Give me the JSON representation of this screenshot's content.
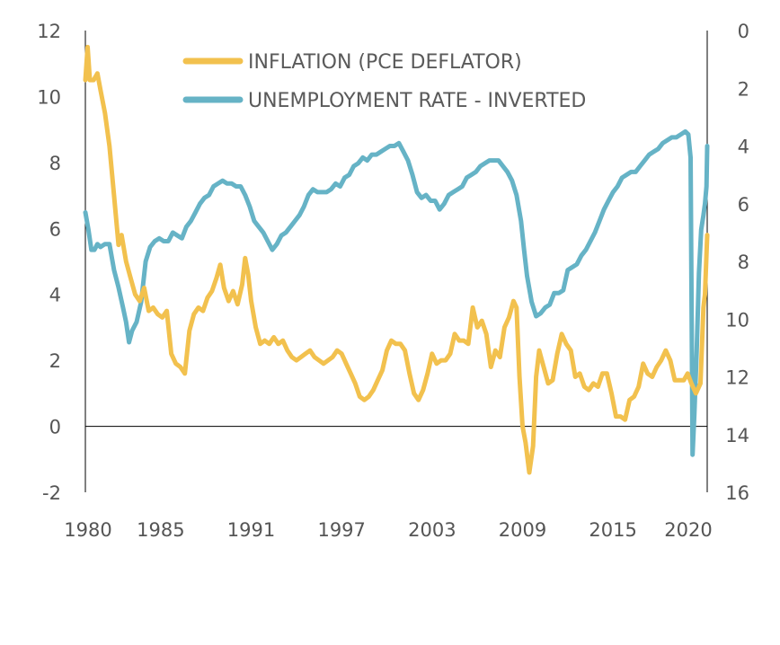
{
  "chart_data": {
    "type": "line",
    "title": "",
    "legend_position": "top-center",
    "grid": false,
    "x_ticks": [
      "1980",
      "1985",
      "1991",
      "1997",
      "2003",
      "2009",
      "2015",
      "2020"
    ],
    "x_range": [
      1980,
      2021.25
    ],
    "y_left_ticks": [
      "12",
      "10",
      "8",
      "6",
      "4",
      "2",
      "0",
      "-2"
    ],
    "y_left_range": [
      -2,
      12
    ],
    "y_right_ticks": [
      "0",
      "2",
      "4",
      "6",
      "8",
      "10",
      "12",
      "14",
      "16"
    ],
    "y_right_range": [
      0,
      16
    ],
    "y_right_inverted": true,
    "series": [
      {
        "name": "INFLATION (PCE DEFLATOR)",
        "axis": "left",
        "color": "#f2c14e",
        "points": [
          [
            1980.0,
            10.5
          ],
          [
            1980.15,
            11.5
          ],
          [
            1980.3,
            10.5
          ],
          [
            1980.55,
            10.5
          ],
          [
            1980.8,
            10.7
          ],
          [
            1981.0,
            10.2
          ],
          [
            1981.3,
            9.5
          ],
          [
            1981.6,
            8.5
          ],
          [
            1981.9,
            7.0
          ],
          [
            1982.2,
            5.5
          ],
          [
            1982.4,
            5.8
          ],
          [
            1982.7,
            5.0
          ],
          [
            1983.0,
            4.5
          ],
          [
            1983.3,
            4.0
          ],
          [
            1983.6,
            3.8
          ],
          [
            1983.9,
            4.2
          ],
          [
            1984.2,
            3.5
          ],
          [
            1984.5,
            3.6
          ],
          [
            1984.8,
            3.4
          ],
          [
            1985.1,
            3.3
          ],
          [
            1985.4,
            3.5
          ],
          [
            1985.7,
            2.2
          ],
          [
            1986.0,
            1.9
          ],
          [
            1986.3,
            1.8
          ],
          [
            1986.6,
            1.6
          ],
          [
            1986.9,
            2.9
          ],
          [
            1987.2,
            3.4
          ],
          [
            1987.5,
            3.6
          ],
          [
            1987.8,
            3.5
          ],
          [
            1988.1,
            3.9
          ],
          [
            1988.4,
            4.1
          ],
          [
            1988.7,
            4.5
          ],
          [
            1988.95,
            4.9
          ],
          [
            1989.2,
            4.2
          ],
          [
            1989.5,
            3.8
          ],
          [
            1989.8,
            4.1
          ],
          [
            1990.1,
            3.7
          ],
          [
            1990.4,
            4.3
          ],
          [
            1990.6,
            5.1
          ],
          [
            1990.8,
            4.6
          ],
          [
            1991.0,
            3.8
          ],
          [
            1991.3,
            3.0
          ],
          [
            1991.6,
            2.5
          ],
          [
            1991.9,
            2.6
          ],
          [
            1992.2,
            2.5
          ],
          [
            1992.5,
            2.7
          ],
          [
            1992.8,
            2.5
          ],
          [
            1993.1,
            2.6
          ],
          [
            1993.4,
            2.3
          ],
          [
            1993.7,
            2.1
          ],
          [
            1994.0,
            2.0
          ],
          [
            1994.3,
            2.1
          ],
          [
            1994.6,
            2.2
          ],
          [
            1994.9,
            2.3
          ],
          [
            1995.2,
            2.1
          ],
          [
            1995.5,
            2.0
          ],
          [
            1995.8,
            1.9
          ],
          [
            1996.1,
            2.0
          ],
          [
            1996.4,
            2.1
          ],
          [
            1996.7,
            2.3
          ],
          [
            1997.0,
            2.2
          ],
          [
            1997.3,
            1.9
          ],
          [
            1997.6,
            1.6
          ],
          [
            1997.9,
            1.3
          ],
          [
            1998.2,
            0.9
          ],
          [
            1998.5,
            0.8
          ],
          [
            1998.8,
            0.9
          ],
          [
            1999.1,
            1.1
          ],
          [
            1999.4,
            1.4
          ],
          [
            1999.7,
            1.7
          ],
          [
            2000.0,
            2.3
          ],
          [
            2000.3,
            2.6
          ],
          [
            2000.6,
            2.5
          ],
          [
            2000.9,
            2.5
          ],
          [
            2001.2,
            2.3
          ],
          [
            2001.5,
            1.6
          ],
          [
            2001.8,
            1.0
          ],
          [
            2002.1,
            0.8
          ],
          [
            2002.4,
            1.1
          ],
          [
            2002.7,
            1.6
          ],
          [
            2003.0,
            2.2
          ],
          [
            2003.3,
            1.9
          ],
          [
            2003.6,
            2.0
          ],
          [
            2003.9,
            2.0
          ],
          [
            2004.2,
            2.2
          ],
          [
            2004.5,
            2.8
          ],
          [
            2004.8,
            2.6
          ],
          [
            2005.1,
            2.6
          ],
          [
            2005.4,
            2.5
          ],
          [
            2005.7,
            3.6
          ],
          [
            2006.0,
            3.0
          ],
          [
            2006.3,
            3.2
          ],
          [
            2006.6,
            2.8
          ],
          [
            2006.9,
            1.8
          ],
          [
            2007.2,
            2.3
          ],
          [
            2007.5,
            2.1
          ],
          [
            2007.8,
            3.0
          ],
          [
            2008.1,
            3.3
          ],
          [
            2008.4,
            3.8
          ],
          [
            2008.6,
            3.6
          ],
          [
            2008.8,
            1.5
          ],
          [
            2009.0,
            0.0
          ],
          [
            2009.2,
            -0.5
          ],
          [
            2009.45,
            -1.4
          ],
          [
            2009.7,
            -0.6
          ],
          [
            2009.9,
            1.5
          ],
          [
            2010.1,
            2.3
          ],
          [
            2010.4,
            1.8
          ],
          [
            2010.7,
            1.3
          ],
          [
            2011.0,
            1.4
          ],
          [
            2011.3,
            2.2
          ],
          [
            2011.6,
            2.8
          ],
          [
            2011.9,
            2.5
          ],
          [
            2012.2,
            2.3
          ],
          [
            2012.5,
            1.5
          ],
          [
            2012.8,
            1.6
          ],
          [
            2013.1,
            1.2
          ],
          [
            2013.4,
            1.1
          ],
          [
            2013.7,
            1.3
          ],
          [
            2014.0,
            1.2
          ],
          [
            2014.3,
            1.6
          ],
          [
            2014.6,
            1.6
          ],
          [
            2014.9,
            1.0
          ],
          [
            2015.2,
            0.3
          ],
          [
            2015.5,
            0.3
          ],
          [
            2015.8,
            0.2
          ],
          [
            2016.1,
            0.8
          ],
          [
            2016.4,
            0.9
          ],
          [
            2016.7,
            1.2
          ],
          [
            2017.0,
            1.9
          ],
          [
            2017.3,
            1.6
          ],
          [
            2017.6,
            1.5
          ],
          [
            2017.9,
            1.8
          ],
          [
            2018.2,
            2.0
          ],
          [
            2018.5,
            2.3
          ],
          [
            2018.8,
            2.0
          ],
          [
            2019.1,
            1.4
          ],
          [
            2019.4,
            1.4
          ],
          [
            2019.7,
            1.4
          ],
          [
            2019.95,
            1.6
          ],
          [
            2020.2,
            1.3
          ],
          [
            2020.5,
            1.0
          ],
          [
            2020.8,
            1.3
          ],
          [
            2021.0,
            3.6
          ],
          [
            2021.1,
            4.0
          ],
          [
            2021.25,
            5.8
          ]
        ]
      },
      {
        "name": "UNEMPLOYMENT RATE - INVERTED",
        "axis": "right",
        "color": "#66b3c6",
        "points": [
          [
            1980.0,
            6.3
          ],
          [
            1980.2,
            6.9
          ],
          [
            1980.4,
            7.6
          ],
          [
            1980.6,
            7.6
          ],
          [
            1980.8,
            7.4
          ],
          [
            1981.0,
            7.5
          ],
          [
            1981.3,
            7.4
          ],
          [
            1981.6,
            7.4
          ],
          [
            1981.9,
            8.3
          ],
          [
            1982.2,
            8.9
          ],
          [
            1982.5,
            9.6
          ],
          [
            1982.7,
            10.1
          ],
          [
            1982.9,
            10.8
          ],
          [
            1983.1,
            10.4
          ],
          [
            1983.4,
            10.1
          ],
          [
            1983.7,
            9.4
          ],
          [
            1984.0,
            8.0
          ],
          [
            1984.3,
            7.5
          ],
          [
            1984.6,
            7.3
          ],
          [
            1984.9,
            7.2
          ],
          [
            1985.2,
            7.3
          ],
          [
            1985.5,
            7.3
          ],
          [
            1985.8,
            7.0
          ],
          [
            1986.1,
            7.1
          ],
          [
            1986.4,
            7.2
          ],
          [
            1986.7,
            6.8
          ],
          [
            1987.0,
            6.6
          ],
          [
            1987.3,
            6.3
          ],
          [
            1987.6,
            6.0
          ],
          [
            1987.9,
            5.8
          ],
          [
            1988.2,
            5.7
          ],
          [
            1988.5,
            5.4
          ],
          [
            1988.8,
            5.3
          ],
          [
            1989.1,
            5.2
          ],
          [
            1989.4,
            5.3
          ],
          [
            1989.7,
            5.3
          ],
          [
            1990.0,
            5.4
          ],
          [
            1990.3,
            5.4
          ],
          [
            1990.6,
            5.7
          ],
          [
            1990.9,
            6.1
          ],
          [
            1991.2,
            6.6
          ],
          [
            1991.5,
            6.8
          ],
          [
            1991.8,
            7.0
          ],
          [
            1992.1,
            7.3
          ],
          [
            1992.4,
            7.6
          ],
          [
            1992.7,
            7.4
          ],
          [
            1993.0,
            7.1
          ],
          [
            1993.3,
            7.0
          ],
          [
            1993.6,
            6.8
          ],
          [
            1993.9,
            6.6
          ],
          [
            1994.2,
            6.4
          ],
          [
            1994.5,
            6.1
          ],
          [
            1994.8,
            5.7
          ],
          [
            1995.1,
            5.5
          ],
          [
            1995.4,
            5.6
          ],
          [
            1995.7,
            5.6
          ],
          [
            1996.0,
            5.6
          ],
          [
            1996.3,
            5.5
          ],
          [
            1996.6,
            5.3
          ],
          [
            1996.9,
            5.4
          ],
          [
            1997.2,
            5.1
          ],
          [
            1997.5,
            5.0
          ],
          [
            1997.8,
            4.7
          ],
          [
            1998.1,
            4.6
          ],
          [
            1998.4,
            4.4
          ],
          [
            1998.7,
            4.5
          ],
          [
            1999.0,
            4.3
          ],
          [
            1999.3,
            4.3
          ],
          [
            1999.6,
            4.2
          ],
          [
            1999.9,
            4.1
          ],
          [
            2000.2,
            4.0
          ],
          [
            2000.5,
            4.0
          ],
          [
            2000.8,
            3.9
          ],
          [
            2001.1,
            4.2
          ],
          [
            2001.4,
            4.5
          ],
          [
            2001.7,
            5.0
          ],
          [
            2002.0,
            5.6
          ],
          [
            2002.3,
            5.8
          ],
          [
            2002.6,
            5.7
          ],
          [
            2002.9,
            5.9
          ],
          [
            2003.2,
            5.9
          ],
          [
            2003.5,
            6.2
          ],
          [
            2003.8,
            6.0
          ],
          [
            2004.1,
            5.7
          ],
          [
            2004.4,
            5.6
          ],
          [
            2004.7,
            5.5
          ],
          [
            2005.0,
            5.4
          ],
          [
            2005.3,
            5.1
          ],
          [
            2005.6,
            5.0
          ],
          [
            2005.9,
            4.9
          ],
          [
            2006.2,
            4.7
          ],
          [
            2006.5,
            4.6
          ],
          [
            2006.8,
            4.5
          ],
          [
            2007.1,
            4.5
          ],
          [
            2007.4,
            4.5
          ],
          [
            2007.7,
            4.7
          ],
          [
            2008.0,
            4.9
          ],
          [
            2008.3,
            5.2
          ],
          [
            2008.6,
            5.7
          ],
          [
            2008.9,
            6.6
          ],
          [
            2009.1,
            7.6
          ],
          [
            2009.3,
            8.5
          ],
          [
            2009.6,
            9.4
          ],
          [
            2009.9,
            9.9
          ],
          [
            2010.2,
            9.8
          ],
          [
            2010.5,
            9.6
          ],
          [
            2010.8,
            9.5
          ],
          [
            2011.1,
            9.1
          ],
          [
            2011.4,
            9.1
          ],
          [
            2011.7,
            9.0
          ],
          [
            2012.0,
            8.3
          ],
          [
            2012.3,
            8.2
          ],
          [
            2012.6,
            8.1
          ],
          [
            2012.9,
            7.8
          ],
          [
            2013.2,
            7.6
          ],
          [
            2013.5,
            7.3
          ],
          [
            2013.8,
            7.0
          ],
          [
            2014.1,
            6.6
          ],
          [
            2014.4,
            6.2
          ],
          [
            2014.7,
            5.9
          ],
          [
            2015.0,
            5.6
          ],
          [
            2015.3,
            5.4
          ],
          [
            2015.6,
            5.1
          ],
          [
            2015.9,
            5.0
          ],
          [
            2016.2,
            4.9
          ],
          [
            2016.5,
            4.9
          ],
          [
            2016.8,
            4.7
          ],
          [
            2017.1,
            4.5
          ],
          [
            2017.4,
            4.3
          ],
          [
            2017.7,
            4.2
          ],
          [
            2018.0,
            4.1
          ],
          [
            2018.3,
            3.9
          ],
          [
            2018.6,
            3.8
          ],
          [
            2018.9,
            3.7
          ],
          [
            2019.2,
            3.7
          ],
          [
            2019.5,
            3.6
          ],
          [
            2019.8,
            3.5
          ],
          [
            2020.0,
            3.6
          ],
          [
            2020.15,
            4.4
          ],
          [
            2020.28,
            14.7
          ],
          [
            2020.4,
            13.3
          ],
          [
            2020.55,
            11.1
          ],
          [
            2020.7,
            8.4
          ],
          [
            2020.85,
            6.9
          ],
          [
            2021.0,
            6.4
          ],
          [
            2021.1,
            6.0
          ],
          [
            2021.2,
            5.4
          ],
          [
            2021.25,
            4.0
          ]
        ]
      }
    ]
  }
}
